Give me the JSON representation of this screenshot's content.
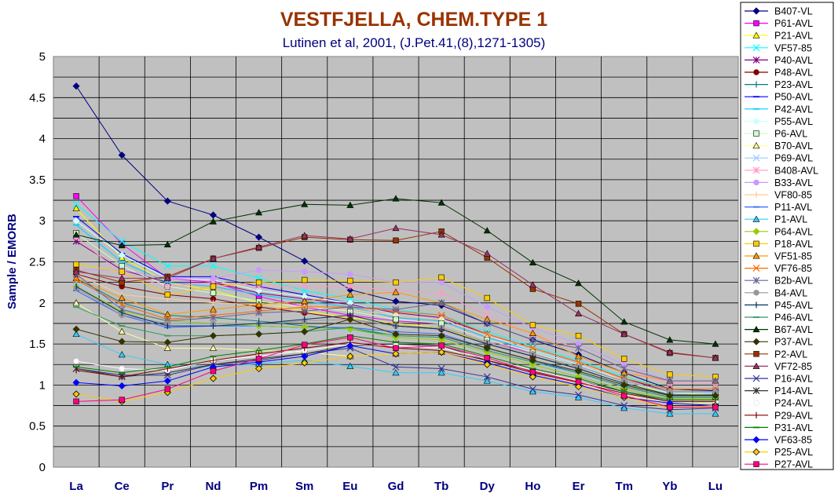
{
  "chart_data": {
    "type": "line",
    "title": "VESTFJELLA, CHEM.TYPE 1",
    "subtitle": "Lutinen et al, 2001, (J.Pet.41,(8),1271-1305)",
    "xlabel": "",
    "ylabel": "Sample / EMORB",
    "ylim": [
      0,
      5
    ],
    "yticks": [
      "0",
      "0.5",
      "1",
      "1.5",
      "2",
      "2.5",
      "3",
      "3.5",
      "4",
      "4.5",
      "5"
    ],
    "grid": true,
    "legend_position": "right",
    "background_color": "#c0c0c0",
    "categories": [
      "La",
      "Ce",
      "Pr",
      "Nd",
      "Pm",
      "Sm",
      "Eu",
      "Gd",
      "Tb",
      "Dy",
      "Ho",
      "Er",
      "Tm",
      "Yb",
      "Lu"
    ],
    "series": [
      {
        "name": "B407-VL",
        "color": "#000080",
        "marker": "diamond",
        "values": [
          4.64,
          3.8,
          3.24,
          3.07,
          2.8,
          2.51,
          2.16,
          2.02,
          1.97,
          1.75,
          1.55,
          1.37,
          1.15,
          0.95,
          0.93
        ]
      },
      {
        "name": "P61-AVL",
        "color": "#ff00ff",
        "marker": "square",
        "values": [
          3.3,
          2.72,
          2.3,
          2.25,
          2.08,
          1.95,
          1.85,
          1.78,
          1.75,
          1.55,
          1.38,
          1.22,
          1.05,
          0.9,
          0.9
        ]
      },
      {
        "name": "P21-AVL",
        "color": "#ffff00",
        "marker": "triangle",
        "values": [
          3.15,
          2.55,
          2.25,
          2.15,
          2.0,
          1.9,
          1.82,
          1.75,
          1.7,
          1.5,
          1.35,
          1.2,
          1.02,
          0.9,
          0.88
        ]
      },
      {
        "name": "VF57-85",
        "color": "#00ffff",
        "marker": "x",
        "values": [
          3.2,
          2.75,
          2.45,
          2.45,
          2.3,
          2.15,
          2.05,
          1.92,
          1.85,
          1.65,
          1.47,
          1.3,
          1.1,
          0.95,
          0.95
        ]
      },
      {
        "name": "P40-AVL",
        "color": "#800080",
        "marker": "star",
        "values": [
          2.75,
          2.4,
          2.25,
          2.25,
          2.12,
          2.05,
          1.98,
          1.88,
          1.82,
          1.62,
          1.45,
          1.28,
          1.08,
          0.92,
          0.92
        ]
      },
      {
        "name": "P48-AVL",
        "color": "#800000",
        "marker": "circle",
        "values": [
          2.35,
          2.2,
          2.1,
          2.05,
          1.95,
          1.88,
          1.8,
          1.72,
          1.68,
          1.5,
          1.35,
          1.2,
          1.02,
          0.88,
          0.88
        ]
      },
      {
        "name": "P23-AVL",
        "color": "#008080",
        "marker": "plus",
        "values": [
          2.3,
          2.0,
          1.85,
          1.82,
          1.78,
          1.72,
          1.68,
          1.6,
          1.58,
          1.42,
          1.28,
          1.15,
          0.98,
          0.85,
          0.85
        ]
      },
      {
        "name": "P50-AVL",
        "color": "#0000ff",
        "marker": "dash",
        "values": [
          3.05,
          2.6,
          2.32,
          2.32,
          2.2,
          2.1,
          2.0,
          1.85,
          1.8,
          1.6,
          1.42,
          1.25,
          1.05,
          0.9,
          0.9
        ]
      },
      {
        "name": "P42-AVL",
        "color": "#00ccff",
        "marker": "dash",
        "values": [
          2.95,
          2.5,
          2.25,
          2.2,
          2.1,
          2.02,
          1.95,
          1.82,
          1.78,
          1.58,
          1.42,
          1.25,
          1.05,
          0.9,
          0.9
        ]
      },
      {
        "name": "P55-AVL",
        "color": "#ccffff",
        "marker": "diamond",
        "values": [
          3.0,
          2.58,
          2.3,
          2.28,
          2.15,
          2.08,
          2.0,
          1.85,
          1.8,
          1.6,
          1.42,
          1.25,
          1.05,
          0.9,
          0.9
        ]
      },
      {
        "name": "P6-AVL",
        "color": "#ccffcc",
        "marker": "square",
        "values": [
          2.85,
          2.45,
          2.2,
          2.12,
          2.02,
          1.95,
          1.9,
          1.8,
          1.75,
          1.55,
          1.4,
          1.22,
          1.02,
          0.88,
          0.88
        ]
      },
      {
        "name": "B70-AVL",
        "color": "#ffff99",
        "marker": "triangle",
        "values": [
          2.0,
          1.65,
          1.45,
          1.45,
          1.42,
          1.4,
          1.35,
          1.38,
          1.4,
          1.3,
          1.15,
          1.02,
          0.88,
          0.78,
          0.78
        ]
      },
      {
        "name": "P69-AVL",
        "color": "#99ccff",
        "marker": "x",
        "values": [
          2.25,
          1.95,
          1.75,
          1.72,
          1.7,
          1.68,
          1.65,
          1.6,
          1.58,
          1.42,
          1.28,
          1.12,
          0.95,
          0.82,
          0.82
        ]
      },
      {
        "name": "B408-AVL",
        "color": "#ff99cc",
        "marker": "star",
        "values": [
          2.8,
          2.35,
          2.2,
          2.25,
          2.2,
          2.2,
          2.2,
          2.15,
          2.12,
          1.85,
          1.62,
          1.45,
          1.2,
          1.02,
          1.02
        ]
      },
      {
        "name": "B33-AVL",
        "color": "#cc99ff",
        "marker": "circle",
        "values": [
          2.4,
          2.4,
          2.3,
          2.3,
          2.4,
          2.38,
          2.35,
          2.25,
          2.25,
          1.95,
          1.7,
          1.5,
          1.25,
          1.05,
          1.05
        ]
      },
      {
        "name": "VF80-85",
        "color": "#ffcc99",
        "marker": "plus",
        "values": [
          2.35,
          2.1,
          2.05,
          2.0,
          1.98,
          1.95,
          1.92,
          1.85,
          1.8,
          1.6,
          1.45,
          1.28,
          1.05,
          0.92,
          0.92
        ]
      },
      {
        "name": "P11-AVL",
        "color": "#3366ff",
        "marker": "dash",
        "values": [
          2.15,
          1.85,
          1.7,
          1.72,
          1.72,
          1.7,
          1.7,
          1.65,
          1.62,
          1.45,
          1.3,
          1.15,
          0.98,
          0.85,
          0.85
        ]
      },
      {
        "name": "P1-AVL",
        "color": "#33ccff",
        "marker": "triangle",
        "values": [
          1.62,
          1.37,
          1.25,
          1.22,
          1.26,
          1.3,
          1.23,
          1.15,
          1.15,
          1.05,
          0.92,
          0.85,
          0.72,
          0.65,
          0.65
        ]
      },
      {
        "name": "P64-AVL",
        "color": "#99cc00",
        "marker": "diamond",
        "values": [
          2.2,
          1.9,
          1.78,
          1.75,
          1.72,
          1.7,
          1.68,
          1.58,
          1.55,
          1.4,
          1.25,
          1.1,
          0.95,
          0.83,
          0.83
        ]
      },
      {
        "name": "P18-AVL",
        "color": "#ffcc00",
        "marker": "square",
        "values": [
          2.47,
          2.38,
          2.1,
          2.2,
          2.25,
          2.28,
          2.27,
          2.25,
          2.31,
          2.06,
          1.73,
          1.6,
          1.32,
          1.13,
          1.1
        ]
      },
      {
        "name": "VF51-85",
        "color": "#ff9900",
        "marker": "triangle",
        "values": [
          2.3,
          2.06,
          1.86,
          1.92,
          1.98,
          2.02,
          2.1,
          2.13,
          2.0,
          1.8,
          1.63,
          1.35,
          1.15,
          1.05,
          1.05
        ]
      },
      {
        "name": "VF76-85",
        "color": "#ff6600",
        "marker": "x",
        "values": [
          2.28,
          1.98,
          1.8,
          1.85,
          1.9,
          1.95,
          1.95,
          1.9,
          1.85,
          1.62,
          1.45,
          1.28,
          1.08,
          0.95,
          0.95
        ]
      },
      {
        "name": "B2b-AVL",
        "color": "#666699",
        "marker": "star",
        "values": [
          2.35,
          1.92,
          1.78,
          1.82,
          1.88,
          1.9,
          1.95,
          1.92,
          2.0,
          1.75,
          1.55,
          1.45,
          1.2,
          1.05,
          1.05
        ]
      },
      {
        "name": "B4-AVL",
        "color": "#969696",
        "marker": "circle",
        "values": [
          2.18,
          1.85,
          1.75,
          1.75,
          1.75,
          1.78,
          1.8,
          1.72,
          1.7,
          1.52,
          1.38,
          1.22,
          1.05,
          0.92,
          0.92
        ]
      },
      {
        "name": "P45-AVL",
        "color": "#003366",
        "marker": "plus",
        "values": [
          2.2,
          1.88,
          1.72,
          1.72,
          1.75,
          1.8,
          1.85,
          1.72,
          1.68,
          1.5,
          1.35,
          1.2,
          1.02,
          0.88,
          0.88
        ]
      },
      {
        "name": "P46-AVL",
        "color": "#339966",
        "marker": "dash",
        "values": [
          1.95,
          1.72,
          1.6,
          1.6,
          1.62,
          1.65,
          1.7,
          1.6,
          1.58,
          1.42,
          1.28,
          1.15,
          0.98,
          0.85,
          0.85
        ]
      },
      {
        "name": "B67-AVL",
        "color": "#003300",
        "marker": "triangle",
        "values": [
          2.83,
          2.7,
          2.71,
          2.99,
          3.1,
          3.2,
          3.19,
          3.27,
          3.22,
          2.88,
          2.49,
          2.24,
          1.77,
          1.55,
          1.5
        ]
      },
      {
        "name": "P37-AVL",
        "color": "#333300",
        "marker": "diamond",
        "values": [
          1.68,
          1.53,
          1.52,
          1.6,
          1.62,
          1.65,
          1.8,
          1.62,
          1.6,
          1.45,
          1.3,
          1.17,
          1.0,
          0.87,
          0.87
        ]
      },
      {
        "name": "P2-AVL",
        "color": "#993300",
        "marker": "square",
        "values": [
          2.4,
          2.25,
          2.32,
          2.54,
          2.67,
          2.8,
          2.77,
          2.76,
          2.87,
          2.55,
          2.17,
          1.99,
          1.62,
          1.39,
          1.33
        ]
      },
      {
        "name": "VF72-85",
        "color": "#993366",
        "marker": "triangle",
        "values": [
          2.38,
          2.3,
          2.3,
          2.54,
          2.68,
          2.82,
          2.78,
          2.91,
          2.83,
          2.6,
          2.22,
          1.87,
          1.62,
          1.4,
          1.33
        ]
      },
      {
        "name": "P16-AVL",
        "color": "#333399",
        "marker": "x",
        "values": [
          1.2,
          1.12,
          1.12,
          1.25,
          1.3,
          1.38,
          1.45,
          1.22,
          1.2,
          1.1,
          0.95,
          0.88,
          0.75,
          0.7,
          0.72
        ]
      },
      {
        "name": "P14-AVL",
        "color": "#333333",
        "marker": "star",
        "values": [
          1.2,
          1.1,
          1.15,
          1.25,
          1.32,
          1.38,
          1.48,
          1.5,
          1.48,
          1.3,
          1.17,
          1.05,
          0.92,
          0.8,
          0.8
        ]
      },
      {
        "name": "P24-AVL",
        "color": "#ffffff",
        "marker": "circle",
        "values": [
          1.29,
          1.2,
          1.18,
          1.3,
          1.35,
          1.42,
          1.5,
          1.48,
          1.45,
          1.32,
          1.18,
          1.05,
          0.9,
          0.8,
          0.8
        ]
      },
      {
        "name": "P29-AVL",
        "color": "#800000",
        "marker": "plus",
        "values": [
          1.18,
          1.1,
          1.2,
          1.3,
          1.38,
          1.45,
          1.52,
          1.45,
          1.42,
          1.3,
          1.15,
          1.03,
          0.9,
          0.8,
          0.8
        ]
      },
      {
        "name": "P31-AVL",
        "color": "#008000",
        "marker": "dash",
        "values": [
          1.22,
          1.15,
          1.22,
          1.35,
          1.42,
          1.5,
          1.6,
          1.52,
          1.5,
          1.35,
          1.2,
          1.08,
          0.92,
          0.82,
          0.82
        ]
      },
      {
        "name": "VF63-85",
        "color": "#0000ff",
        "marker": "diamond",
        "values": [
          1.03,
          0.99,
          1.05,
          1.22,
          1.28,
          1.35,
          1.48,
          1.38,
          1.4,
          1.27,
          1.12,
          1.0,
          0.85,
          0.78,
          0.75
        ]
      },
      {
        "name": "P25-AVL",
        "color": "#ffcc00",
        "marker": "diamond",
        "values": [
          0.89,
          0.8,
          0.91,
          1.08,
          1.2,
          1.27,
          1.35,
          1.38,
          1.4,
          1.25,
          1.1,
          0.98,
          0.85,
          0.72,
          0.75
        ]
      },
      {
        "name": "P27-AVL",
        "color": "#ff0080",
        "marker": "square",
        "values": [
          0.8,
          0.82,
          0.95,
          1.17,
          1.32,
          1.49,
          1.58,
          1.45,
          1.48,
          1.33,
          1.16,
          1.04,
          0.87,
          0.73,
          0.73
        ]
      }
    ]
  }
}
